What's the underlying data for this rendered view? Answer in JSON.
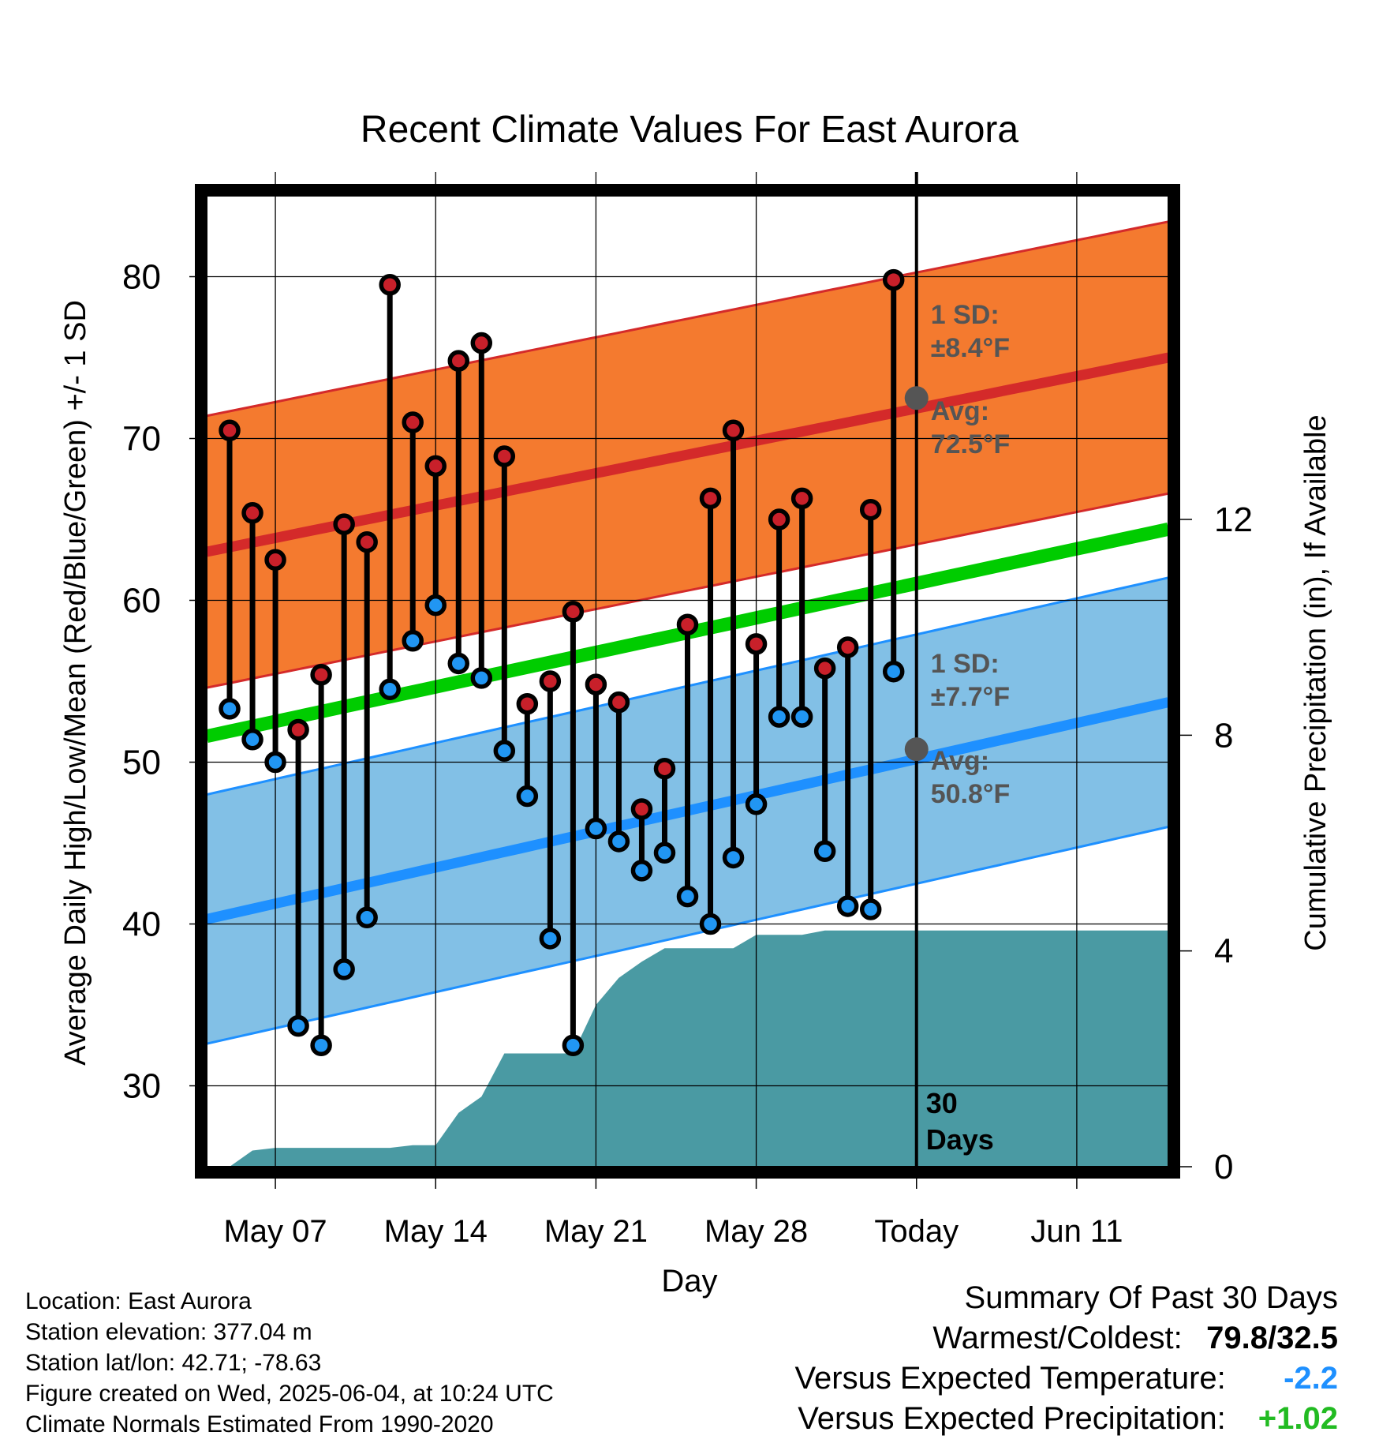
{
  "chart_data": {
    "type": "range-bar",
    "title": "Recent Climate Values For East Aurora",
    "xlabel": "Day",
    "ylabel_left": "Average Daily High/Low/Mean (Red/Blue/Green) +/- 1 SD",
    "ylabel_right": "Cumulative Precipitation (in), If Available",
    "ylim_left": [
      25,
      85
    ],
    "ylim_right": [
      0,
      18
    ],
    "yticks_left": [
      30,
      40,
      50,
      60,
      70,
      80
    ],
    "yticks_right": [
      0,
      4,
      8,
      12
    ],
    "x_start": "2025-05-04",
    "x_end": "2025-06-15",
    "xtick_labels": [
      {
        "date": "2025-05-07",
        "label": "May 07"
      },
      {
        "date": "2025-05-14",
        "label": "May 14"
      },
      {
        "date": "2025-05-21",
        "label": "May 21"
      },
      {
        "date": "2025-05-28",
        "label": "May 28"
      },
      {
        "date": "2025-06-04",
        "label": "Today"
      },
      {
        "date": "2025-06-11",
        "label": "Jun 11"
      }
    ],
    "today": "2025-06-04",
    "period_label": "30 Days",
    "dates": [
      "2025-05-05",
      "2025-05-06",
      "2025-05-07",
      "2025-05-08",
      "2025-05-09",
      "2025-05-10",
      "2025-05-11",
      "2025-05-12",
      "2025-05-13",
      "2025-05-14",
      "2025-05-15",
      "2025-05-16",
      "2025-05-17",
      "2025-05-18",
      "2025-05-19",
      "2025-05-20",
      "2025-05-21",
      "2025-05-22",
      "2025-05-23",
      "2025-05-24",
      "2025-05-25",
      "2025-05-26",
      "2025-05-27",
      "2025-05-28",
      "2025-05-29",
      "2025-05-30",
      "2025-05-31",
      "2025-06-01",
      "2025-06-02",
      "2025-06-03"
    ],
    "daily_high": [
      70.5,
      65.4,
      62.5,
      52.0,
      55.4,
      64.7,
      63.6,
      79.5,
      71.0,
      68.3,
      74.8,
      75.9,
      68.9,
      53.6,
      55.0,
      59.3,
      54.8,
      53.7,
      47.1,
      49.6,
      58.5,
      66.3,
      70.5,
      57.3,
      65.0,
      66.3,
      55.8,
      57.1,
      65.6,
      79.8
    ],
    "daily_low": [
      53.3,
      51.4,
      50.0,
      33.7,
      32.5,
      37.2,
      40.4,
      54.5,
      57.5,
      59.7,
      56.1,
      55.2,
      50.7,
      47.9,
      39.1,
      32.5,
      45.9,
      45.1,
      43.3,
      44.4,
      41.7,
      40.0,
      44.1,
      47.4,
      52.8,
      52.8,
      44.5,
      41.1,
      40.9,
      55.6
    ],
    "normal_high": {
      "start": 63.0,
      "end": 75.0
    },
    "normal_low": {
      "start": 40.3,
      "end": 53.7
    },
    "normal_mean": {
      "start": 51.6,
      "end": 64.4
    },
    "sd_high": 8.4,
    "sd_low": 7.7,
    "cumulative_precip": [
      {
        "date": "2025-05-04",
        "value": 0.0
      },
      {
        "date": "2025-05-05",
        "value": 0.0
      },
      {
        "date": "2025-05-06",
        "value": 0.3
      },
      {
        "date": "2025-05-07",
        "value": 0.35
      },
      {
        "date": "2025-05-12",
        "value": 0.35
      },
      {
        "date": "2025-05-13",
        "value": 0.4
      },
      {
        "date": "2025-05-14",
        "value": 0.4
      },
      {
        "date": "2025-05-15",
        "value": 1.0
      },
      {
        "date": "2025-05-16",
        "value": 1.3
      },
      {
        "date": "2025-05-17",
        "value": 2.1
      },
      {
        "date": "2025-05-20",
        "value": 2.1
      },
      {
        "date": "2025-05-21",
        "value": 3.0
      },
      {
        "date": "2025-05-22",
        "value": 3.5
      },
      {
        "date": "2025-05-23",
        "value": 3.8
      },
      {
        "date": "2025-05-24",
        "value": 4.05
      },
      {
        "date": "2025-05-27",
        "value": 4.05
      },
      {
        "date": "2025-05-28",
        "value": 4.3
      },
      {
        "date": "2025-05-30",
        "value": 4.3
      },
      {
        "date": "2025-05-31",
        "value": 4.38
      },
      {
        "date": "2025-06-15",
        "value": 4.38
      }
    ],
    "annotations": {
      "high_sd_label": "1 SD:",
      "high_sd_value": "±8.4°F",
      "high_avg_label": "Avg:",
      "high_avg_value": "72.5°F",
      "high_avg": 72.5,
      "low_sd_label": "1 SD:",
      "low_sd_value": "±7.7°F",
      "low_avg_label": "Avg:",
      "low_avg_value": "50.8°F",
      "low_avg": 50.8
    },
    "colors": {
      "high_band": "#f47a2f",
      "high_line": "#d42a2a",
      "low_band": "#82c0e6",
      "low_line": "#1e90ff",
      "mean_line": "#00cc00",
      "precip": "#4a9aa3",
      "high_marker": "#c8202a",
      "low_marker": "#2196f3",
      "annotation_text": "#555555"
    }
  },
  "info": {
    "location": "Location: East Aurora",
    "elevation": "Station elevation: 377.04 m",
    "latlon": "Station lat/lon: 42.71; -78.63",
    "created": "Figure created on Wed, 2025-06-04, at 10:24 UTC",
    "normals": "Climate Normals Estimated From 1990-2020"
  },
  "summary": {
    "title": "Summary Of Past 30 Days",
    "warm_cold_label": "Warmest/Coldest:",
    "warm_cold_value": "79.8/32.5",
    "temp_label": "Versus Expected Temperature:",
    "temp_value": "-2.2",
    "temp_color": "#1e90ff",
    "precip_label": "Versus Expected Precipitation:",
    "precip_value": "+1.02",
    "precip_color": "#22bb22"
  }
}
